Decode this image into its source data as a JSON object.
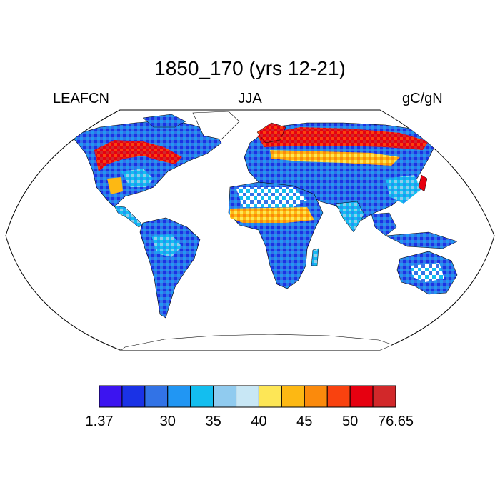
{
  "title": "1850_170 (yrs 12-21)",
  "variable": "LEAFCN",
  "season": "JJA",
  "units": "gC/gN",
  "map": {
    "projection": "Robinson",
    "ocean_color": "#ffffff",
    "coastline_color": "#000000"
  },
  "colorbar": {
    "colors": [
      "#3c14f0",
      "#1a32e6",
      "#3273e6",
      "#2196f3",
      "#13beef",
      "#90cbef",
      "#c8e7f5",
      "#fde656",
      "#fdb813",
      "#fb8a0c",
      "#f9420f",
      "#e60010",
      "#d2282a"
    ],
    "labels": [
      "1.37",
      "30",
      "35",
      "40",
      "45",
      "50",
      "76.65"
    ]
  }
}
